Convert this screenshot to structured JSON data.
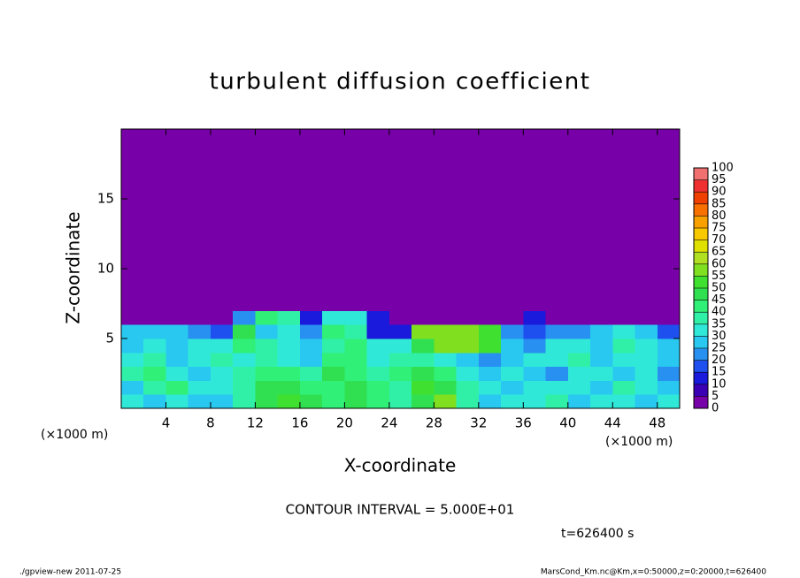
{
  "chart_data": {
    "type": "heatmap",
    "title": "turbulent diffusion coefficient",
    "xlabel": "X-coordinate",
    "ylabel": "Z-coordinate",
    "unit_label": "(×1000 m)",
    "xlim": [
      0,
      50
    ],
    "ylim": [
      0,
      20
    ],
    "xticks": [
      4,
      8,
      12,
      16,
      20,
      24,
      28,
      32,
      36,
      40,
      44,
      48
    ],
    "yticks": [
      5,
      10,
      15
    ],
    "xbins": [
      0,
      2,
      4,
      6,
      8,
      10,
      12,
      14,
      16,
      18,
      20,
      22,
      24,
      26,
      28,
      30,
      32,
      34,
      36,
      38,
      40,
      42,
      44,
      46,
      48,
      50
    ],
    "zbins": [
      0,
      1,
      2,
      3,
      4,
      5,
      6,
      7,
      20
    ],
    "values": [
      [
        30,
        25,
        30,
        25,
        25,
        35,
        45,
        50,
        45,
        40,
        45,
        40,
        35,
        45,
        55,
        35,
        25,
        30,
        30,
        35,
        25,
        30,
        30,
        25,
        30
      ],
      [
        25,
        35,
        40,
        30,
        30,
        35,
        45,
        45,
        40,
        40,
        45,
        40,
        35,
        50,
        45,
        35,
        30,
        25,
        30,
        30,
        30,
        25,
        35,
        30,
        25
      ],
      [
        35,
        40,
        30,
        25,
        30,
        35,
        40,
        40,
        35,
        45,
        40,
        35,
        40,
        45,
        40,
        30,
        25,
        30,
        25,
        20,
        30,
        30,
        25,
        30,
        20
      ],
      [
        30,
        35,
        25,
        30,
        35,
        30,
        35,
        30,
        25,
        40,
        40,
        30,
        35,
        35,
        30,
        25,
        20,
        25,
        30,
        30,
        35,
        25,
        30,
        30,
        25
      ],
      [
        25,
        30,
        25,
        30,
        30,
        40,
        35,
        30,
        25,
        35,
        40,
        30,
        30,
        45,
        55,
        55,
        50,
        25,
        20,
        30,
        30,
        25,
        35,
        30,
        25
      ],
      [
        25,
        25,
        25,
        20,
        15,
        45,
        25,
        30,
        20,
        40,
        35,
        10,
        10,
        55,
        55,
        55,
        50,
        20,
        15,
        20,
        20,
        25,
        30,
        25,
        15
      ],
      [
        0,
        0,
        0,
        0,
        0,
        20,
        40,
        35,
        10,
        30,
        30,
        10,
        0,
        0,
        0,
        0,
        0,
        0,
        10,
        0,
        0,
        0,
        0,
        0,
        0
      ],
      [
        0,
        0,
        0,
        0,
        0,
        0,
        0,
        0,
        0,
        0,
        0,
        0,
        0,
        0,
        0,
        0,
        0,
        0,
        0,
        0,
        0,
        0,
        0,
        0,
        0
      ]
    ],
    "levels": [
      0,
      5,
      10,
      15,
      20,
      25,
      30,
      35,
      40,
      45,
      50,
      55,
      60,
      65,
      70,
      75,
      80,
      85,
      90,
      95,
      100
    ],
    "colors": [
      "#7800a8",
      "#3c00b4",
      "#1a1adc",
      "#1e50f0",
      "#2890f0",
      "#28c8f0",
      "#30e8d8",
      "#30f0a8",
      "#30f078",
      "#30e050",
      "#40e030",
      "#80e020",
      "#b0e020",
      "#e0e000",
      "#f8c800",
      "#f8a000",
      "#f87000",
      "#f04000",
      "#f03030",
      "#f07070"
    ],
    "contour_note": "CONTOUR INTERVAL = 5.000E+01",
    "time_note": "t=626400 s",
    "footer_left": "./gpview-new  2011-07-25",
    "footer_right": "MarsCond_Km.nc@Km,x=0:50000,z=0:20000,t=626400"
  }
}
